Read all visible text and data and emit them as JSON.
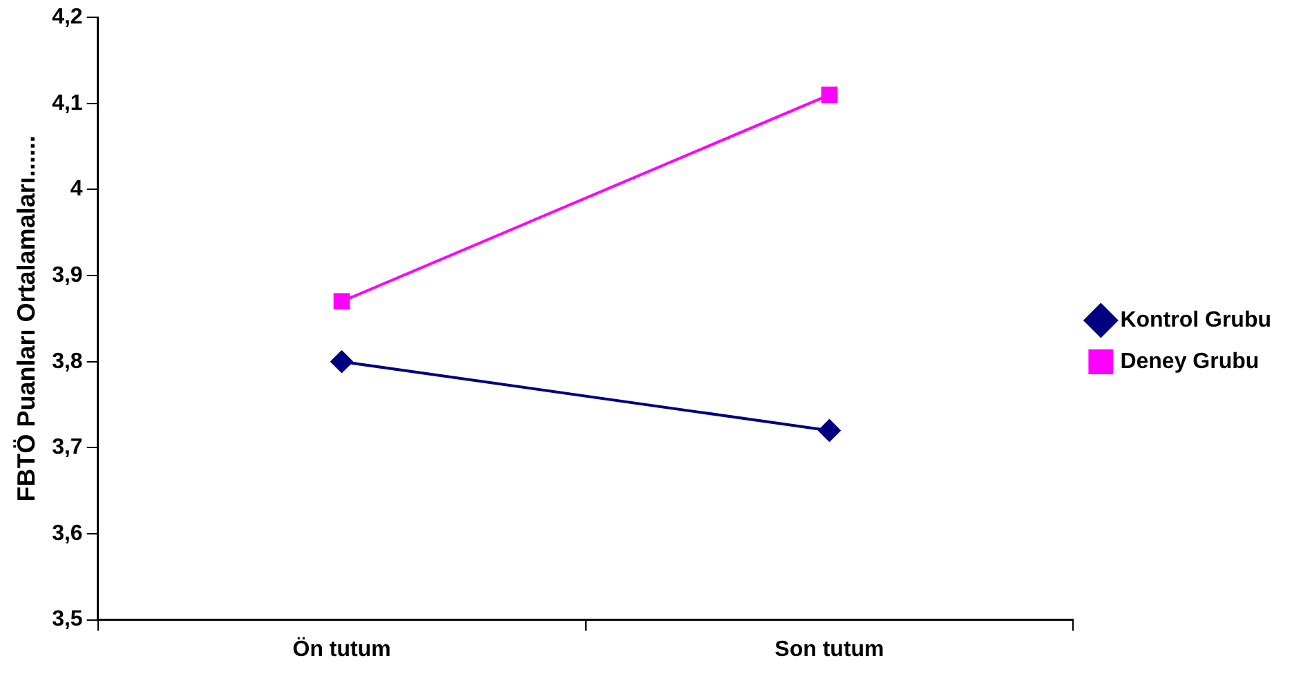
{
  "chart_data": {
    "type": "line",
    "ylabel": "FBTÖ Puanları Ortalamaları......",
    "categories": [
      "Ön tutum",
      "Son tutum"
    ],
    "series": [
      {
        "name": "Kontrol Grubu",
        "color": "#000080",
        "values": [
          3.8,
          3.72
        ],
        "marker": "diamond"
      },
      {
        "name": "Deney Grubu",
        "color": "#ff00ff",
        "values": [
          3.87,
          4.11
        ],
        "marker": "square"
      }
    ],
    "ylim": [
      3.5,
      4.2
    ],
    "yticks": [
      {
        "value": 3.5,
        "label": "3,5"
      },
      {
        "value": 3.6,
        "label": "3,6"
      },
      {
        "value": 3.7,
        "label": "3,7"
      },
      {
        "value": 3.8,
        "label": "3,8"
      },
      {
        "value": 3.9,
        "label": "3,9"
      },
      {
        "value": 4,
        "label": "4"
      },
      {
        "value": 4.1,
        "label": "4,1"
      },
      {
        "value": 4.2,
        "label": "4,2"
      }
    ],
    "grid": false,
    "legend": "right",
    "line_style": "solid"
  }
}
